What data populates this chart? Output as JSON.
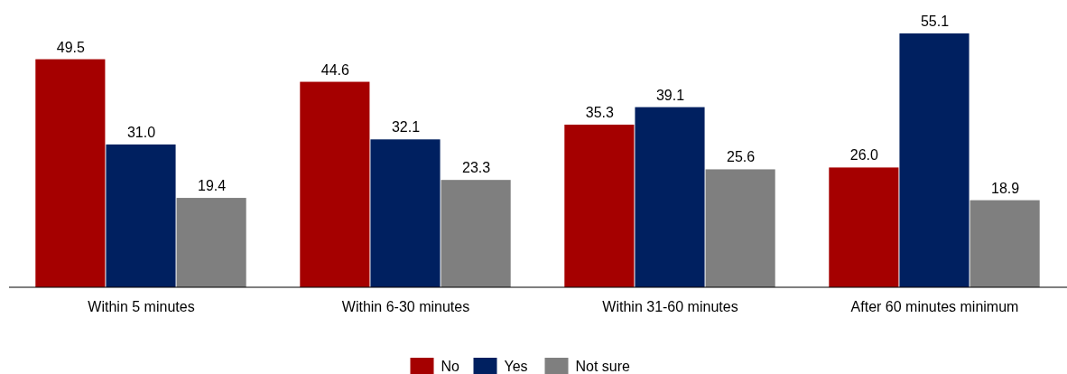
{
  "chart_data": {
    "type": "bar",
    "categories": [
      "Within 5 minutes",
      "Within 6-30 minutes",
      "Within 31-60 minutes",
      "After 60 minutes minimum"
    ],
    "series": [
      {
        "name": "No",
        "color": "#a50000",
        "values": [
          49.5,
          44.6,
          35.3,
          26.0
        ],
        "value_labels": [
          "49.5",
          "44.6",
          "35.3",
          "26.0"
        ]
      },
      {
        "name": "Yes",
        "color": "#002060",
        "values": [
          31.0,
          32.1,
          39.1,
          55.1
        ],
        "value_labels": [
          "31.0",
          "32.1",
          "39.1",
          "55.1"
        ]
      },
      {
        "name": "Not sure",
        "color": "#7f7f7f",
        "values": [
          19.4,
          23.3,
          25.6,
          18.9
        ],
        "value_labels": [
          "19.4",
          "23.3",
          "25.6",
          "18.9"
        ]
      }
    ],
    "legend": "bottom"
  }
}
